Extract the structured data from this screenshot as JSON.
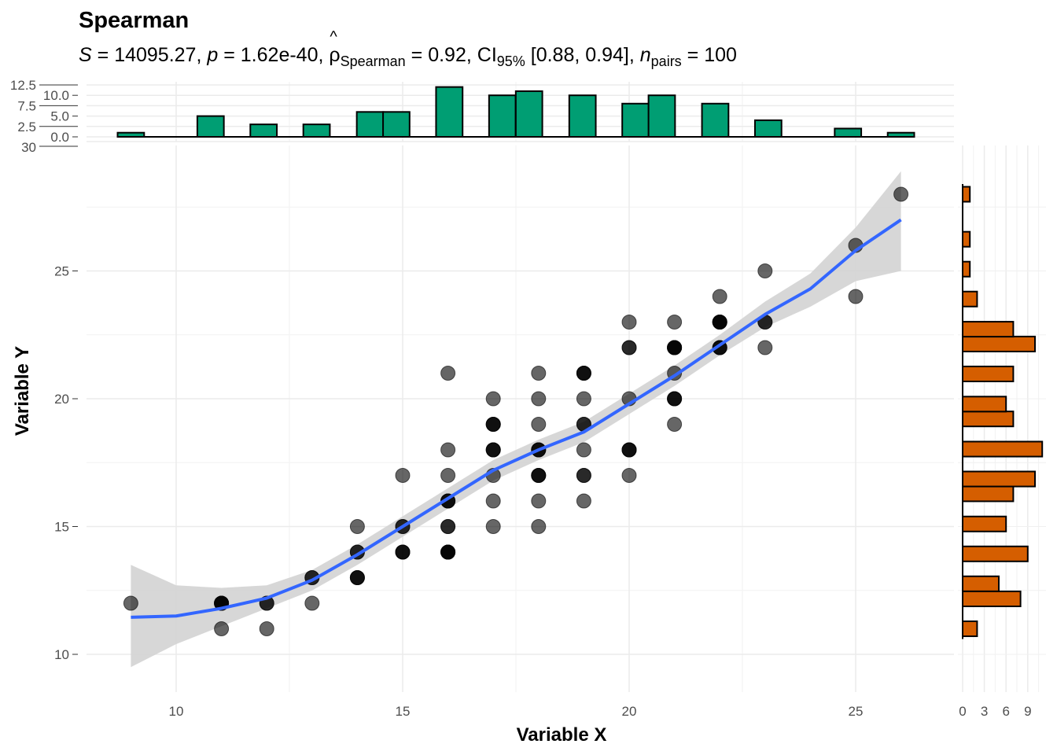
{
  "chart_data": {
    "type": "scatter",
    "title": "Spearman",
    "subtitle": {
      "S_label": "S",
      "S_value": "14095.27",
      "p_label": "p",
      "p_value": "1.62e-40",
      "rho_label": "ρ",
      "rho_hat": "^",
      "rho_sub": "Spearman",
      "rho_value": "0.92",
      "ci_label": "CI",
      "ci_sub": "95%",
      "ci_value": "[0.88, 0.94]",
      "n_label": "n",
      "n_sub": "pairs",
      "n_value": "100"
    },
    "xlabel": "Variable X",
    "ylabel": "Variable Y",
    "xlim": [
      8,
      27.5
    ],
    "ylim": [
      8.5,
      30
    ],
    "x_ticks": [
      10,
      15,
      20,
      25
    ],
    "y_ticks": [
      10,
      15,
      20,
      25
    ],
    "grid": true,
    "point_color": "#000000",
    "point_alpha": 0.6,
    "smooth_color": "#3366FF",
    "ci_band_color": "#D3D3D3",
    "points": [
      {
        "x": 9,
        "y": 12,
        "n": 1
      },
      {
        "x": 11,
        "y": 12,
        "n": 4
      },
      {
        "x": 11,
        "y": 11,
        "n": 1
      },
      {
        "x": 12,
        "y": 12,
        "n": 2
      },
      {
        "x": 12,
        "y": 11,
        "n": 1
      },
      {
        "x": 13,
        "y": 13,
        "n": 2
      },
      {
        "x": 13,
        "y": 12,
        "n": 1
      },
      {
        "x": 14,
        "y": 15,
        "n": 1
      },
      {
        "x": 14,
        "y": 14,
        "n": 2
      },
      {
        "x": 14,
        "y": 13,
        "n": 3
      },
      {
        "x": 15,
        "y": 17,
        "n": 1
      },
      {
        "x": 15,
        "y": 15,
        "n": 2
      },
      {
        "x": 15,
        "y": 14,
        "n": 3
      },
      {
        "x": 16,
        "y": 21,
        "n": 1
      },
      {
        "x": 16,
        "y": 18,
        "n": 1
      },
      {
        "x": 16,
        "y": 17,
        "n": 1
      },
      {
        "x": 16,
        "y": 16,
        "n": 3
      },
      {
        "x": 16,
        "y": 15,
        "n": 2
      },
      {
        "x": 16,
        "y": 14,
        "n": 4
      },
      {
        "x": 17,
        "y": 20,
        "n": 1
      },
      {
        "x": 17,
        "y": 19,
        "n": 3
      },
      {
        "x": 17,
        "y": 18,
        "n": 3
      },
      {
        "x": 17,
        "y": 17,
        "n": 1
      },
      {
        "x": 17,
        "y": 16,
        "n": 1
      },
      {
        "x": 17,
        "y": 15,
        "n": 1
      },
      {
        "x": 18,
        "y": 21,
        "n": 1
      },
      {
        "x": 18,
        "y": 20,
        "n": 1
      },
      {
        "x": 18,
        "y": 19,
        "n": 1
      },
      {
        "x": 18,
        "y": 18,
        "n": 3
      },
      {
        "x": 18,
        "y": 17,
        "n": 3
      },
      {
        "x": 18,
        "y": 16,
        "n": 1
      },
      {
        "x": 18,
        "y": 15,
        "n": 1
      },
      {
        "x": 19,
        "y": 21,
        "n": 3
      },
      {
        "x": 19,
        "y": 20,
        "n": 1
      },
      {
        "x": 19,
        "y": 19,
        "n": 2
      },
      {
        "x": 19,
        "y": 18,
        "n": 1
      },
      {
        "x": 19,
        "y": 17,
        "n": 2
      },
      {
        "x": 19,
        "y": 16,
        "n": 1
      },
      {
        "x": 20,
        "y": 23,
        "n": 1
      },
      {
        "x": 20,
        "y": 22,
        "n": 2
      },
      {
        "x": 20,
        "y": 20,
        "n": 1
      },
      {
        "x": 20,
        "y": 18,
        "n": 3
      },
      {
        "x": 20,
        "y": 17,
        "n": 1
      },
      {
        "x": 21,
        "y": 23,
        "n": 1
      },
      {
        "x": 21,
        "y": 22,
        "n": 4
      },
      {
        "x": 21,
        "y": 21,
        "n": 1
      },
      {
        "x": 21,
        "y": 20,
        "n": 3
      },
      {
        "x": 21,
        "y": 19,
        "n": 1
      },
      {
        "x": 22,
        "y": 24,
        "n": 1
      },
      {
        "x": 22,
        "y": 23,
        "n": 4
      },
      {
        "x": 22,
        "y": 22,
        "n": 3
      },
      {
        "x": 23,
        "y": 25,
        "n": 1
      },
      {
        "x": 23,
        "y": 23,
        "n": 2
      },
      {
        "x": 23,
        "y": 22,
        "n": 1
      },
      {
        "x": 25,
        "y": 26,
        "n": 1
      },
      {
        "x": 25,
        "y": 24,
        "n": 1
      },
      {
        "x": 26,
        "y": 28,
        "n": 1
      }
    ],
    "smooth": {
      "x": [
        9,
        10,
        11,
        12,
        13,
        14,
        15,
        16,
        17,
        18,
        19,
        20,
        21,
        22,
        23,
        24,
        25,
        26
      ],
      "y": [
        11.45,
        11.5,
        11.8,
        12.2,
        12.9,
        13.9,
        15.0,
        16.1,
        17.2,
        18.0,
        18.7,
        19.8,
        20.9,
        22.1,
        23.3,
        24.3,
        25.8,
        27.0
      ],
      "lower": [
        9.5,
        10.4,
        11.1,
        11.8,
        12.5,
        13.5,
        14.6,
        15.7,
        16.8,
        17.6,
        18.3,
        19.4,
        20.5,
        21.7,
        22.8,
        23.6,
        24.6,
        25.0
      ],
      "upper": [
        13.5,
        12.7,
        12.6,
        12.7,
        13.3,
        14.3,
        15.4,
        16.5,
        17.6,
        18.4,
        19.1,
        20.2,
        21.3,
        22.5,
        23.8,
        24.9,
        26.7,
        28.9
      ]
    },
    "x_histogram": {
      "fill": "#009E73",
      "bin_width": 0.586,
      "bin_centers": [
        9.0,
        10.76,
        11.93,
        13.1,
        14.28,
        14.86,
        16.03,
        17.2,
        17.79,
        18.97,
        20.14,
        20.72,
        21.9,
        23.07,
        24.83,
        26.0
      ],
      "counts": [
        1,
        5,
        3,
        3,
        6,
        6,
        12,
        10,
        11,
        10,
        8,
        10,
        8,
        4,
        2,
        1
      ],
      "y_ticks": [
        "0.0",
        "2.5",
        "5.0",
        "7.5",
        "10.0",
        "12.5"
      ],
      "y_tick_values": [
        0,
        2.5,
        5,
        7.5,
        10,
        12.5
      ],
      "extra_tick_label": "30"
    },
    "y_histogram": {
      "fill": "#D55E00",
      "bin_width": 0.586,
      "bin_centers": [
        11.0,
        12.17,
        12.76,
        13.93,
        15.1,
        16.28,
        16.86,
        18.03,
        19.21,
        19.79,
        20.97,
        22.14,
        22.72,
        23.9,
        25.07,
        26.24,
        28.0
      ],
      "counts": [
        2,
        8,
        5,
        9,
        6,
        7,
        10,
        11,
        7,
        6,
        7,
        10,
        7,
        2,
        1,
        1,
        1
      ],
      "x_ticks": [
        "0",
        "3",
        "6",
        "9"
      ],
      "x_tick_values": [
        0,
        3,
        6,
        9
      ]
    }
  }
}
